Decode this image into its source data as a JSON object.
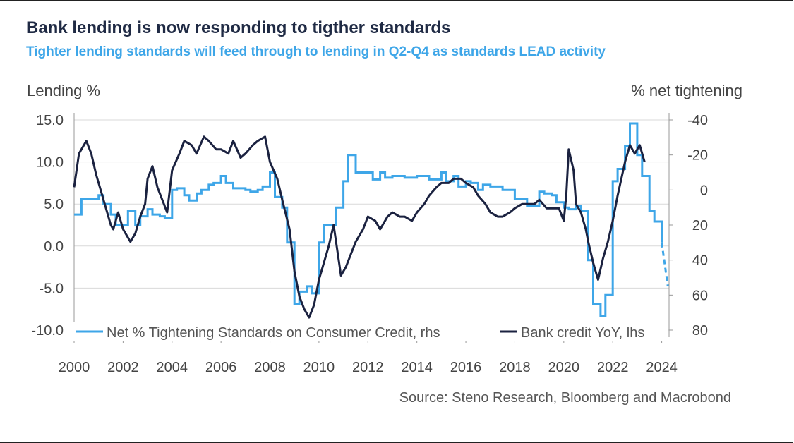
{
  "chart_data": {
    "type": "line",
    "title": "Bank lending is now responding to tigther standards",
    "subtitle": "Tighter lending standards will feed through to lending in Q2-Q4 as standards LEAD activity",
    "ylabel_left": "Lending %",
    "ylabel_right": "% net tightening",
    "source": "Source: Steno Research, Bloomberg and Macrobond",
    "x_ticks": [
      "2000",
      "2002",
      "2004",
      "2006",
      "2008",
      "2010",
      "2012",
      "2014",
      "2016",
      "2018",
      "2020",
      "2022",
      "2024"
    ],
    "xlim": [
      2000,
      2024.3
    ],
    "y_left": {
      "lim": [
        -10,
        15
      ],
      "ticks": [
        "15.0",
        "10.0",
        "5.0",
        "0.0",
        "-5.0",
        "-10.0"
      ],
      "tick_values": [
        15,
        10,
        5,
        0,
        -5,
        -10
      ]
    },
    "y_right": {
      "lim": [
        80,
        -40
      ],
      "inverted": true,
      "ticks": [
        "-40",
        "-20",
        "0",
        "20",
        "40",
        "60",
        "80"
      ],
      "tick_values": [
        -40,
        -20,
        0,
        20,
        40,
        60,
        80
      ]
    },
    "grid": "horizontal",
    "legend_position": "bottom-inside",
    "colors": {
      "tightening": "#3ea6e8",
      "credit": "#1b2240",
      "grid": "#d9d9d9",
      "axis_text": "#444444"
    },
    "series": [
      {
        "name": "Net % Tightening Standards on Consumer Credit, rhs",
        "axis": "right",
        "style": "step",
        "x": [
          2000.0,
          2000.3,
          2000.7,
          2001.0,
          2001.2,
          2001.5,
          2001.7,
          2002.0,
          2002.2,
          2002.5,
          2002.7,
          2003.0,
          2003.2,
          2003.5,
          2003.7,
          2004.0,
          2004.2,
          2004.5,
          2004.7,
          2005.0,
          2005.2,
          2005.5,
          2005.7,
          2006.0,
          2006.2,
          2006.5,
          2006.7,
          2007.0,
          2007.2,
          2007.5,
          2007.7,
          2008.0,
          2008.2,
          2008.5,
          2008.7,
          2009.0,
          2009.2,
          2009.5,
          2009.7,
          2010.0,
          2010.2,
          2010.5,
          2010.7,
          2011.0,
          2011.2,
          2011.5,
          2011.7,
          2012.0,
          2012.2,
          2012.5,
          2012.7,
          2013.0,
          2013.5,
          2014.0,
          2014.5,
          2015.0,
          2015.2,
          2015.5,
          2015.7,
          2016.0,
          2016.2,
          2016.5,
          2016.7,
          2017.0,
          2017.5,
          2018.0,
          2018.5,
          2019.0,
          2019.2,
          2019.5,
          2019.7,
          2020.0,
          2020.2,
          2020.5,
          2020.7,
          2021.0,
          2021.2,
          2021.5,
          2021.7,
          2022.0,
          2022.2,
          2022.5,
          2022.7,
          2023.0,
          2023.2,
          2023.5,
          2023.7,
          2024.0
        ],
        "y": [
          14,
          5,
          5,
          3,
          8,
          14,
          20,
          20,
          12,
          20,
          15,
          11,
          14,
          15,
          16,
          0,
          -1,
          3,
          6,
          2,
          0,
          -3,
          -4,
          -8,
          -4,
          -1,
          -1,
          0,
          1,
          0,
          -2,
          -10,
          4,
          10,
          30,
          65,
          58,
          55,
          59,
          30,
          20,
          20,
          10,
          -5,
          -20,
          -10,
          -10,
          -10,
          -6,
          -10,
          -7,
          -8,
          -7,
          -8,
          -6,
          -10,
          -5,
          -8,
          -2,
          -5,
          -4,
          0,
          -3,
          -2,
          0,
          5,
          9,
          1,
          2,
          3,
          7,
          10,
          11,
          9,
          12,
          40,
          65,
          72,
          60,
          -5,
          -12,
          -25,
          -38,
          -20,
          -8,
          12,
          18,
          30
        ],
        "forecast": {
          "x": [
            2024.0,
            2024.25
          ],
          "y": [
            30,
            55
          ]
        }
      },
      {
        "name": "Bank credit YoY, lhs",
        "axis": "left",
        "style": "line",
        "x": [
          2000.0,
          2000.2,
          2000.5,
          2000.7,
          2000.9,
          2001.1,
          2001.3,
          2001.5,
          2001.6,
          2001.8,
          2002.0,
          2002.3,
          2002.5,
          2002.7,
          2002.9,
          2003.0,
          2003.2,
          2003.4,
          2003.6,
          2003.8,
          2004.0,
          2004.3,
          2004.5,
          2004.8,
          2005.0,
          2005.3,
          2005.5,
          2005.8,
          2006.0,
          2006.3,
          2006.5,
          2006.8,
          2007.0,
          2007.3,
          2007.5,
          2007.8,
          2008.0,
          2008.3,
          2008.5,
          2008.8,
          2009.0,
          2009.2,
          2009.4,
          2009.6,
          2009.8,
          2010.0,
          2010.2,
          2010.4,
          2010.6,
          2010.9,
          2011.1,
          2011.3,
          2011.5,
          2011.8,
          2012.0,
          2012.3,
          2012.5,
          2012.8,
          2013.0,
          2013.3,
          2013.5,
          2013.8,
          2014.0,
          2014.3,
          2014.5,
          2014.8,
          2015.0,
          2015.3,
          2015.5,
          2015.8,
          2016.0,
          2016.3,
          2016.5,
          2016.8,
          2017.0,
          2017.3,
          2017.5,
          2017.8,
          2018.0,
          2018.3,
          2018.5,
          2018.8,
          2019.0,
          2019.3,
          2019.5,
          2019.8,
          2020.0,
          2020.1,
          2020.2,
          2020.4,
          2020.5,
          2020.7,
          2020.9,
          2021.0,
          2021.2,
          2021.4,
          2021.6,
          2021.8,
          2022.0,
          2022.2,
          2022.5,
          2022.7,
          2022.9,
          2023.1,
          2023.3
        ],
        "y": [
          7.0,
          11.0,
          12.5,
          11.0,
          8.5,
          6.5,
          4.5,
          2.5,
          2.0,
          4.0,
          2.0,
          0.5,
          1.5,
          3.5,
          5.0,
          8.0,
          9.5,
          7.0,
          5.5,
          4.0,
          9.0,
          11.0,
          12.5,
          12.0,
          11.0,
          13.0,
          12.5,
          11.5,
          11.5,
          11.0,
          12.5,
          10.5,
          11.0,
          12.0,
          12.5,
          13.0,
          10.0,
          8.0,
          5.5,
          2.0,
          -3.0,
          -6.0,
          -7.5,
          -8.5,
          -7.0,
          -4.0,
          -2.0,
          0.0,
          2.5,
          -3.5,
          -2.5,
          -1.0,
          0.5,
          2.0,
          3.5,
          3.0,
          2.0,
          3.5,
          4.0,
          3.5,
          3.5,
          3.0,
          4.0,
          5.0,
          6.0,
          7.0,
          7.5,
          7.5,
          8.0,
          8.0,
          7.5,
          7.0,
          6.0,
          5.0,
          4.0,
          3.5,
          3.5,
          4.0,
          4.5,
          5.0,
          5.0,
          5.0,
          5.5,
          4.5,
          4.5,
          4.5,
          3.0,
          6.0,
          11.5,
          9.0,
          5.0,
          4.0,
          2.0,
          0.5,
          -2.0,
          -4.0,
          -1.5,
          0.5,
          3.0,
          6.0,
          10.0,
          12.0,
          11.0,
          12.0,
          10.0
        ]
      }
    ]
  }
}
